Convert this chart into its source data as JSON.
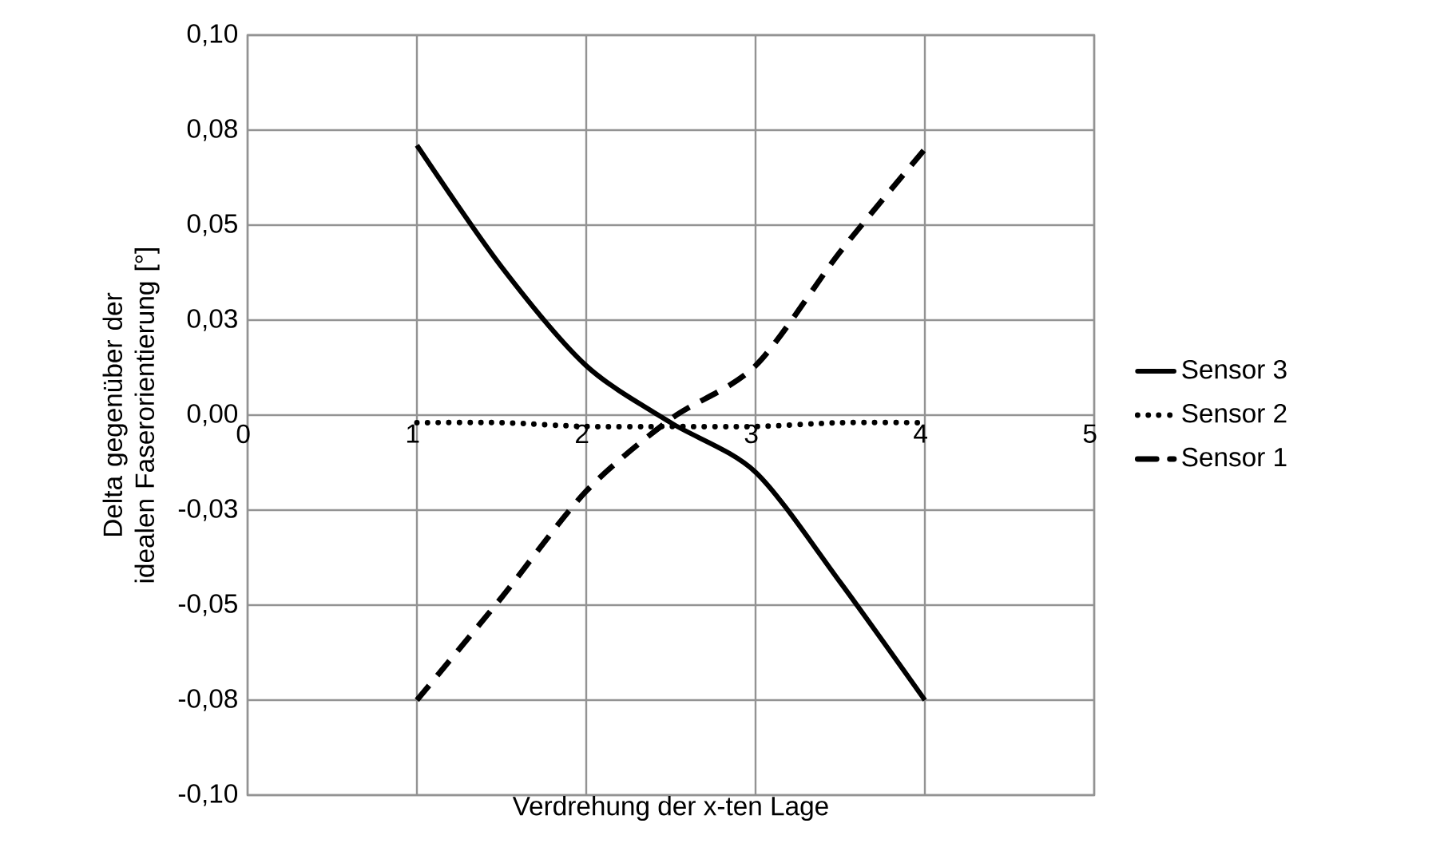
{
  "chart_data": {
    "type": "line",
    "xlabel": "Verdrehung der x-ten Lage",
    "ylabel": "Delta gegenüber der idealen Faserorientierung [°]",
    "x": [
      1,
      1.5,
      2,
      2.5,
      3,
      3.5,
      4
    ],
    "series": [
      {
        "name": "Sensor 3",
        "color": "#000000",
        "line_style": "solid",
        "values": [
          0.071,
          0.039,
          0.013,
          -0.002,
          -0.015,
          -0.044,
          -0.075
        ]
      },
      {
        "name": "Sensor 2",
        "color": "#000000",
        "line_style": "dotted",
        "values": [
          -0.002,
          -0.002,
          -0.003,
          -0.003,
          -0.003,
          -0.002,
          -0.002
        ]
      },
      {
        "name": "Sensor 1",
        "color": "#000000",
        "line_style": "dashed",
        "values": [
          -0.075,
          -0.048,
          -0.02,
          -0.001,
          0.013,
          0.043,
          0.07
        ]
      }
    ],
    "xlim": [
      0,
      5
    ],
    "xticks": [
      0,
      1,
      2,
      3,
      4,
      5
    ],
    "ylim": [
      -0.1,
      0.1
    ],
    "yticks": [
      {
        "value": -0.1,
        "label": "-0,10"
      },
      {
        "value": -0.075,
        "label": "-0,08"
      },
      {
        "value": -0.05,
        "label": "-0,05"
      },
      {
        "value": -0.025,
        "label": "-0,03"
      },
      {
        "value": 0,
        "label": "0,00"
      },
      {
        "value": 0.025,
        "label": "0,03"
      },
      {
        "value": 0.05,
        "label": "0,05"
      },
      {
        "value": 0.075,
        "label": "0,08"
      },
      {
        "value": 0.1,
        "label": "0,10"
      }
    ],
    "grid": true,
    "legend": "right",
    "marker": "none"
  }
}
